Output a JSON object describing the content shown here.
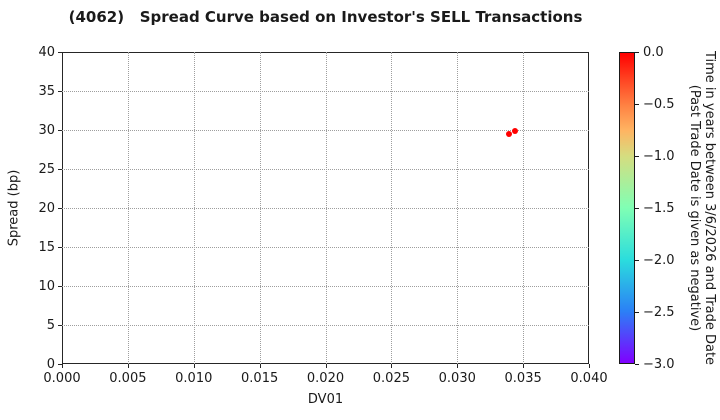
{
  "chart_data": {
    "type": "scatter",
    "title": "(4062)   Spread Curve based on Investor's SELL Transactions",
    "grid": true,
    "legend": "none",
    "x_axis": {
      "label": "DV01",
      "min": 0.0,
      "max": 0.04,
      "ticks": [
        {
          "v": 0.0,
          "t": "0.000"
        },
        {
          "v": 0.005,
          "t": "0.005"
        },
        {
          "v": 0.01,
          "t": "0.010"
        },
        {
          "v": 0.015,
          "t": "0.015"
        },
        {
          "v": 0.02,
          "t": "0.020"
        },
        {
          "v": 0.025,
          "t": "0.025"
        },
        {
          "v": 0.03,
          "t": "0.030"
        },
        {
          "v": 0.035,
          "t": "0.035"
        },
        {
          "v": 0.04,
          "t": "0.040"
        }
      ]
    },
    "y_axis": {
      "label": "Spread (bp)",
      "min": 0,
      "max": 40,
      "ticks": [
        {
          "v": 0,
          "t": "0"
        },
        {
          "v": 5,
          "t": "5"
        },
        {
          "v": 10,
          "t": "10"
        },
        {
          "v": 15,
          "t": "15"
        },
        {
          "v": 20,
          "t": "20"
        },
        {
          "v": 25,
          "t": "25"
        },
        {
          "v": 30,
          "t": "30"
        },
        {
          "v": 35,
          "t": "35"
        },
        {
          "v": 40,
          "t": "40"
        }
      ]
    },
    "points": [
      {
        "x": 0.0339,
        "y": 29.5,
        "time_value": 0.0,
        "color": "#ff0000"
      },
      {
        "x": 0.0344,
        "y": 29.9,
        "time_value": 0.0,
        "color": "#ff0000"
      }
    ],
    "colorbar": {
      "label_line1": "Time in years between 3/6/2026 and Trade Date",
      "label_line2": "(Past Trade Date is given as negative)",
      "min": -3.0,
      "max": 0.0,
      "ticks": [
        {
          "v": 0.0,
          "t": "0.0"
        },
        {
          "v": -0.5,
          "t": "−0.5"
        },
        {
          "v": -1.0,
          "t": "−1.0"
        },
        {
          "v": -1.5,
          "t": "−1.5"
        },
        {
          "v": -2.0,
          "t": "−2.0"
        },
        {
          "v": -2.5,
          "t": "−2.5"
        },
        {
          "v": -3.0,
          "t": "−3.0"
        }
      ],
      "gradient_stops": [
        {
          "p": 0,
          "c": "#ff0000"
        },
        {
          "p": 8.3,
          "c": "#ff4221"
        },
        {
          "p": 16.7,
          "c": "#ff8042"
        },
        {
          "p": 25,
          "c": "#ffb462"
        },
        {
          "p": 33.3,
          "c": "#d5dd80"
        },
        {
          "p": 50,
          "c": "#80ffb4"
        },
        {
          "p": 66.7,
          "c": "#2bdddd"
        },
        {
          "p": 83.3,
          "c": "#2b80f6"
        },
        {
          "p": 100,
          "c": "#8000ff"
        }
      ]
    }
  }
}
